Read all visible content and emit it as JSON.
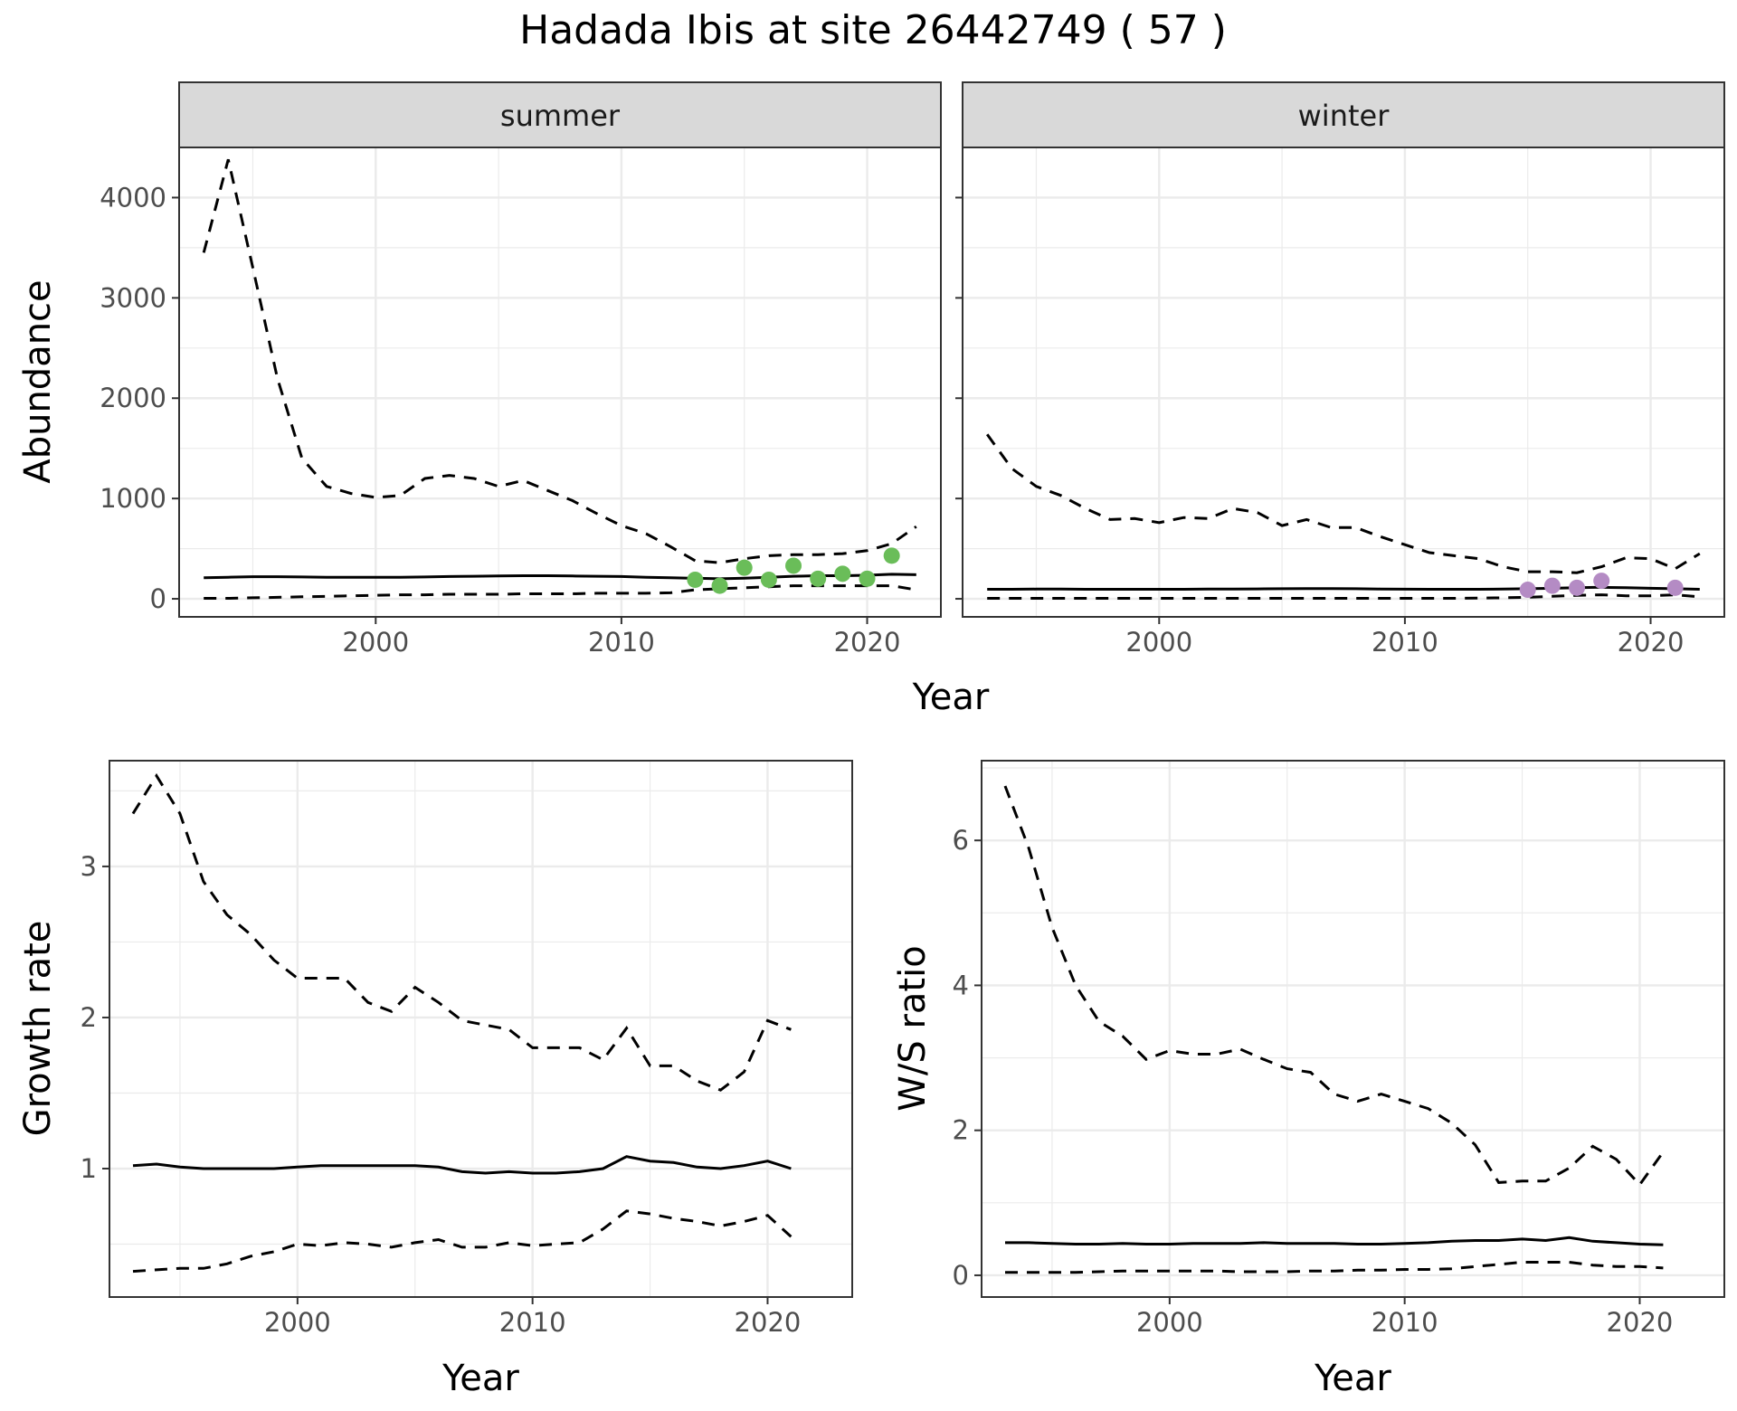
{
  "figure": {
    "title": "Hadada Ibis at site 26442749 ( 57 )",
    "colors": {
      "summer_points": "#6abd59",
      "winter_points": "#b48bc4",
      "line": "#000000",
      "strip_bg": "#d9d9d9",
      "grid": "#ebebeb"
    }
  },
  "chart_data": [
    {
      "id": "abundance",
      "type": "line",
      "facets": [
        "summer",
        "winter"
      ],
      "xlabel": "Year",
      "ylabel": "Abundance",
      "xlim": [
        1992,
        2023
      ],
      "ylim": [
        -180,
        4500
      ],
      "xticks": [
        2000,
        2010,
        2020
      ],
      "yticks": [
        0,
        1000,
        2000,
        3000,
        4000
      ],
      "panels": [
        {
          "facet": "summer",
          "x": [
            1993,
            1994,
            1995,
            1996,
            1997,
            1998,
            1999,
            2000,
            2001,
            2002,
            2003,
            2004,
            2005,
            2006,
            2007,
            2008,
            2009,
            2010,
            2011,
            2012,
            2013,
            2014,
            2015,
            2016,
            2017,
            2018,
            2019,
            2020,
            2021,
            2022
          ],
          "mean": [
            210,
            215,
            220,
            220,
            218,
            215,
            215,
            215,
            215,
            218,
            222,
            225,
            228,
            230,
            230,
            228,
            225,
            222,
            215,
            210,
            205,
            200,
            205,
            215,
            225,
            230,
            230,
            235,
            245,
            240
          ],
          "upper": [
            3450,
            4380,
            3300,
            2200,
            1400,
            1120,
            1050,
            1010,
            1030,
            1200,
            1230,
            1200,
            1120,
            1180,
            1080,
            980,
            850,
            730,
            650,
            520,
            380,
            360,
            400,
            430,
            440,
            440,
            450,
            480,
            550,
            720
          ],
          "lower": [
            5,
            5,
            10,
            15,
            20,
            25,
            30,
            35,
            40,
            40,
            45,
            45,
            45,
            50,
            50,
            50,
            55,
            55,
            55,
            60,
            90,
            100,
            110,
            120,
            130,
            130,
            130,
            130,
            130,
            90
          ],
          "points": {
            "x": [
              2013,
              2014,
              2015,
              2016,
              2017,
              2018,
              2019,
              2020,
              2021
            ],
            "y": [
              190,
              130,
              310,
              190,
              330,
              200,
              250,
              200,
              430
            ]
          }
        },
        {
          "facet": "winter",
          "x": [
            1993,
            1994,
            1995,
            1996,
            1997,
            1998,
            1999,
            2000,
            2001,
            2002,
            2003,
            2004,
            2005,
            2006,
            2007,
            2008,
            2009,
            2010,
            2011,
            2012,
            2013,
            2014,
            2015,
            2016,
            2017,
            2018,
            2019,
            2020,
            2021,
            2022
          ],
          "mean": [
            95,
            95,
            97,
            97,
            95,
            95,
            95,
            95,
            95,
            97,
            98,
            99,
            100,
            101,
            101,
            100,
            98,
            96,
            95,
            95,
            95,
            97,
            100,
            105,
            110,
            115,
            110,
            105,
            100,
            95
          ],
          "upper": [
            1640,
            1300,
            1120,
            1030,
            900,
            790,
            800,
            760,
            810,
            800,
            900,
            860,
            730,
            790,
            710,
            710,
            620,
            540,
            460,
            430,
            400,
            320,
            270,
            270,
            260,
            320,
            410,
            400,
            300,
            450
          ],
          "lower": [
            5,
            5,
            5,
            5,
            5,
            5,
            5,
            5,
            5,
            5,
            5,
            5,
            5,
            5,
            5,
            5,
            5,
            5,
            5,
            5,
            8,
            10,
            15,
            25,
            35,
            40,
            30,
            30,
            40,
            20
          ],
          "points": {
            "x": [
              2015,
              2016,
              2017,
              2018,
              2021
            ],
            "y": [
              90,
              130,
              110,
              180,
              110
            ]
          }
        }
      ]
    },
    {
      "id": "growth_rate",
      "type": "line",
      "xlabel": "Year",
      "ylabel": "Growth rate",
      "xlim": [
        1992,
        2023.6
      ],
      "ylim": [
        0.15,
        3.7
      ],
      "xticks": [
        2000,
        2010,
        2020
      ],
      "yticks": [
        1,
        2,
        3
      ],
      "x": [
        1993,
        1994,
        1995,
        1996,
        1997,
        1998,
        1999,
        2000,
        2001,
        2002,
        2003,
        2004,
        2005,
        2006,
        2007,
        2008,
        2009,
        2010,
        2011,
        2012,
        2013,
        2014,
        2015,
        2016,
        2017,
        2018,
        2019,
        2020,
        2021
      ],
      "mean": [
        1.02,
        1.03,
        1.01,
        1.0,
        1.0,
        1.0,
        1.0,
        1.01,
        1.02,
        1.02,
        1.02,
        1.02,
        1.02,
        1.01,
        0.98,
        0.97,
        0.98,
        0.97,
        0.97,
        0.98,
        1.0,
        1.08,
        1.05,
        1.04,
        1.01,
        1.0,
        1.02,
        1.05,
        1.0
      ],
      "upper": [
        3.35,
        3.6,
        3.35,
        2.9,
        2.68,
        2.55,
        2.38,
        2.26,
        2.26,
        2.26,
        2.1,
        2.04,
        2.2,
        2.1,
        1.98,
        1.95,
        1.92,
        1.8,
        1.8,
        1.8,
        1.72,
        1.93,
        1.68,
        1.68,
        1.58,
        1.52,
        1.64,
        1.98,
        1.92
      ],
      "lower": [
        0.32,
        0.33,
        0.34,
        0.34,
        0.37,
        0.42,
        0.45,
        0.5,
        0.49,
        0.51,
        0.5,
        0.48,
        0.51,
        0.53,
        0.48,
        0.48,
        0.51,
        0.49,
        0.5,
        0.51,
        0.6,
        0.72,
        0.7,
        0.67,
        0.65,
        0.62,
        0.65,
        0.69,
        0.55
      ]
    },
    {
      "id": "ws_ratio",
      "type": "line",
      "xlabel": "Year",
      "ylabel": "W/S ratio",
      "xlim": [
        1992,
        2023.6
      ],
      "ylim": [
        -0.3,
        7.1
      ],
      "xticks": [
        2000,
        2010,
        2020
      ],
      "yticks": [
        0,
        2,
        4,
        6
      ],
      "x": [
        1993,
        1994,
        1995,
        1996,
        1997,
        1998,
        1999,
        2000,
        2001,
        2002,
        2003,
        2004,
        2005,
        2006,
        2007,
        2008,
        2009,
        2010,
        2011,
        2012,
        2013,
        2014,
        2015,
        2016,
        2017,
        2018,
        2019,
        2020,
        2021
      ],
      "mean": [
        0.45,
        0.45,
        0.44,
        0.43,
        0.43,
        0.44,
        0.43,
        0.43,
        0.44,
        0.44,
        0.44,
        0.45,
        0.44,
        0.44,
        0.44,
        0.43,
        0.43,
        0.44,
        0.45,
        0.47,
        0.48,
        0.48,
        0.5,
        0.48,
        0.52,
        0.47,
        0.45,
        0.43,
        0.42
      ],
      "upper": [
        6.75,
        5.9,
        4.8,
        4.0,
        3.5,
        3.3,
        2.98,
        3.1,
        3.05,
        3.05,
        3.12,
        2.98,
        2.85,
        2.8,
        2.5,
        2.4,
        2.5,
        2.4,
        2.3,
        2.1,
        1.8,
        1.28,
        1.3,
        1.3,
        1.48,
        1.78,
        1.6,
        1.25,
        1.7
      ],
      "lower": [
        0.04,
        0.04,
        0.04,
        0.04,
        0.05,
        0.06,
        0.06,
        0.06,
        0.06,
        0.06,
        0.05,
        0.05,
        0.05,
        0.06,
        0.06,
        0.07,
        0.07,
        0.08,
        0.08,
        0.09,
        0.12,
        0.15,
        0.18,
        0.18,
        0.18,
        0.14,
        0.12,
        0.12,
        0.1
      ]
    }
  ]
}
